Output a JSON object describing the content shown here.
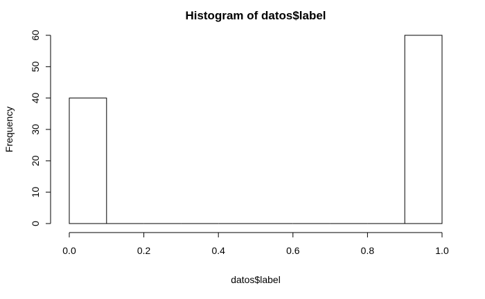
{
  "chart_data": {
    "type": "bar",
    "title": "Histogram of datos$label",
    "xlabel": "datos$label",
    "ylabel": "Frequency",
    "bins": [
      {
        "start": 0.0,
        "end": 0.1,
        "count": 40
      },
      {
        "start": 0.1,
        "end": 0.2,
        "count": 0
      },
      {
        "start": 0.2,
        "end": 0.3,
        "count": 0
      },
      {
        "start": 0.3,
        "end": 0.4,
        "count": 0
      },
      {
        "start": 0.4,
        "end": 0.5,
        "count": 0
      },
      {
        "start": 0.5,
        "end": 0.6,
        "count": 0
      },
      {
        "start": 0.6,
        "end": 0.7,
        "count": 0
      },
      {
        "start": 0.7,
        "end": 0.8,
        "count": 0
      },
      {
        "start": 0.8,
        "end": 0.9,
        "count": 0
      },
      {
        "start": 0.9,
        "end": 1.0,
        "count": 60
      }
    ],
    "xlim": [
      0.0,
      1.0
    ],
    "ylim": [
      0,
      60
    ],
    "x_ticks": [
      "0.0",
      "0.2",
      "0.4",
      "0.6",
      "0.8",
      "1.0"
    ],
    "y_ticks": [
      "0",
      "10",
      "20",
      "30",
      "40",
      "50",
      "60"
    ],
    "grid": false,
    "colors": {
      "bar_fill": "#ffffff",
      "bar_stroke": "#000000",
      "background": "#ffffff"
    }
  }
}
